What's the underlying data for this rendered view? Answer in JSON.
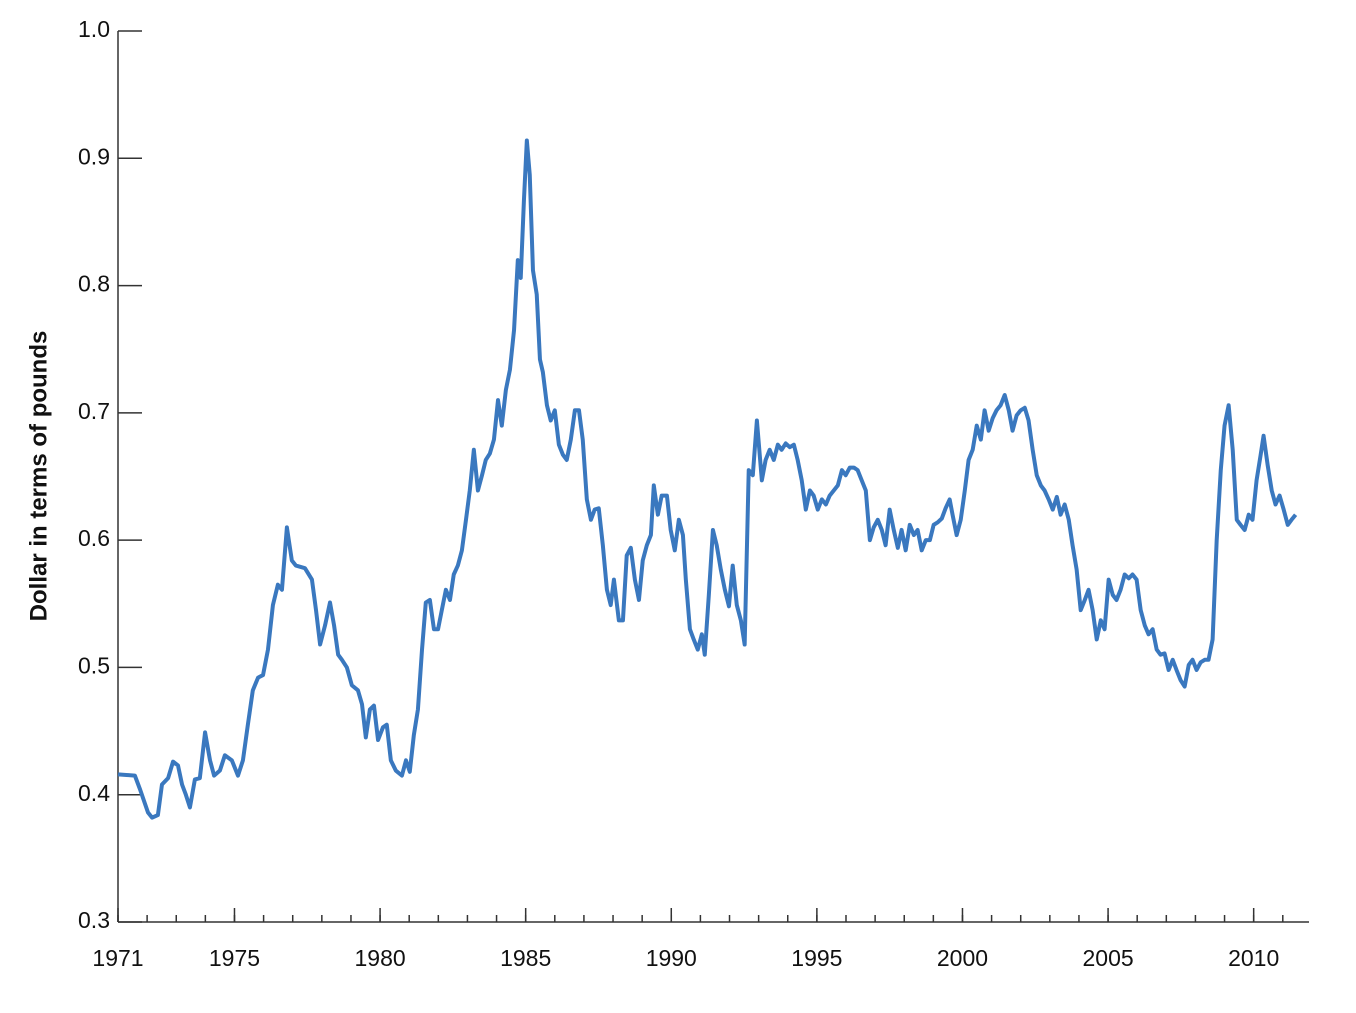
{
  "chart_data": {
    "type": "line",
    "y_label": "Dollar in terms of pounds",
    "color": "#3a78bf",
    "xlim": [
      1971,
      2011.9
    ],
    "ylim": [
      0.3,
      1.0
    ],
    "xticks": [
      1971,
      1975,
      1980,
      1985,
      1990,
      1995,
      2000,
      2005,
      2010
    ],
    "xminorticks": [
      1971,
      1972,
      1973,
      1974,
      1975,
      1976,
      1977,
      1978,
      1979,
      1980,
      1981,
      1982,
      1983,
      1984,
      1985,
      1986,
      1987,
      1988,
      1989,
      1990,
      1991,
      1992,
      1993,
      1994,
      1995,
      1996,
      1997,
      1998,
      1999,
      2000,
      2001,
      2002,
      2003,
      2004,
      2005,
      2006,
      2007,
      2008,
      2009,
      2010,
      2011
    ],
    "yticks": [
      0.3,
      0.4,
      0.5,
      0.6,
      0.7,
      0.8,
      0.9,
      {
        "value": 1,
        "label": "1.0"
      }
    ],
    "x": [
      1971.0,
      1971.58,
      1971.76,
      1972.03,
      1972.17,
      1972.37,
      1972.51,
      1972.72,
      1972.89,
      1973.06,
      1973.2,
      1973.33,
      1973.47,
      1973.64,
      1973.81,
      1973.99,
      1974.16,
      1974.3,
      1974.5,
      1974.67,
      1974.91,
      1975.12,
      1975.29,
      1975.46,
      1975.63,
      1975.81,
      1975.98,
      1976.15,
      1976.32,
      1976.49,
      1976.63,
      1976.8,
      1976.97,
      1977.11,
      1977.42,
      1977.66,
      1977.8,
      1977.94,
      1978.11,
      1978.28,
      1978.42,
      1978.56,
      1978.69,
      1978.86,
      1979.03,
      1979.24,
      1979.38,
      1979.51,
      1979.65,
      1979.79,
      1979.93,
      1980.1,
      1980.23,
      1980.37,
      1980.54,
      1980.75,
      1980.89,
      1981.02,
      1981.16,
      1981.3,
      1981.44,
      1981.57,
      1981.71,
      1981.85,
      1981.99,
      1982.12,
      1982.26,
      1982.4,
      1982.53,
      1982.67,
      1982.81,
      1982.95,
      1983.08,
      1983.22,
      1983.36,
      1983.5,
      1983.63,
      1983.77,
      1983.91,
      1984.05,
      1984.18,
      1984.32,
      1984.46,
      1984.6,
      1984.73,
      1984.83,
      1984.94,
      1985.04,
      1985.14,
      1985.25,
      1985.38,
      1985.49,
      1985.59,
      1985.73,
      1985.86,
      1986.0,
      1986.14,
      1986.28,
      1986.41,
      1986.55,
      1986.69,
      1986.83,
      1986.96,
      1987.1,
      1987.24,
      1987.37,
      1987.51,
      1987.65,
      1987.79,
      1987.92,
      1988.03,
      1988.2,
      1988.34,
      1988.47,
      1988.61,
      1988.75,
      1988.89,
      1989.02,
      1989.16,
      1989.3,
      1989.4,
      1989.54,
      1989.67,
      1989.85,
      1989.98,
      1990.12,
      1990.26,
      1990.4,
      1990.5,
      1990.64,
      1990.77,
      1990.91,
      1991.05,
      1991.15,
      1991.29,
      1991.43,
      1991.56,
      1991.7,
      1991.84,
      1991.98,
      1992.11,
      1992.25,
      1992.39,
      1992.52,
      1992.66,
      1992.8,
      1992.94,
      1993.11,
      1993.24,
      1993.38,
      1993.52,
      1993.66,
      1993.79,
      1993.93,
      1994.07,
      1994.21,
      1994.34,
      1994.48,
      1994.62,
      1994.76,
      1994.89,
      1995.03,
      1995.17,
      1995.31,
      1995.44,
      1995.58,
      1995.72,
      1995.86,
      1995.99,
      1996.13,
      1996.27,
      1996.4,
      1996.54,
      1996.68,
      1996.82,
      1996.95,
      1997.09,
      1997.23,
      1997.36,
      1997.5,
      1997.64,
      1997.78,
      1997.91,
      1998.05,
      1998.19,
      1998.33,
      1998.46,
      1998.6,
      1998.74,
      1998.88,
      1999.01,
      1999.15,
      1999.29,
      1999.42,
      1999.56,
      1999.66,
      1999.8,
      1999.94,
      2000.08,
      2000.21,
      2000.35,
      2000.49,
      2000.63,
      2000.76,
      2000.9,
      2001.04,
      2001.17,
      2001.31,
      2001.45,
      2001.59,
      2001.72,
      2001.86,
      2002.0,
      2002.14,
      2002.27,
      2002.41,
      2002.55,
      2002.69,
      2002.82,
      2002.96,
      2003.1,
      2003.24,
      2003.37,
      2003.51,
      2003.65,
      2003.78,
      2003.92,
      2004.06,
      2004.2,
      2004.33,
      2004.47,
      2004.61,
      2004.75,
      2004.88,
      2005.02,
      2005.16,
      2005.29,
      2005.43,
      2005.57,
      2005.71,
      2005.84,
      2005.98,
      2006.12,
      2006.26,
      2006.39,
      2006.53,
      2006.67,
      2006.8,
      2006.94,
      2007.08,
      2007.22,
      2007.35,
      2007.49,
      2007.63,
      2007.77,
      2007.9,
      2008.04,
      2008.18,
      2008.32,
      2008.45,
      2008.59,
      2008.73,
      2008.87,
      2009.0,
      2009.14,
      2009.28,
      2009.42,
      2009.55,
      2009.69,
      2009.83,
      2009.96,
      2010.1,
      2010.24,
      2010.34,
      2010.48,
      2010.62,
      2010.75,
      2010.89,
      2011.03,
      2011.17,
      2011.3,
      2011.44
    ],
    "values": [
      0.416,
      0.415,
      0.404,
      0.386,
      0.382,
      0.384,
      0.408,
      0.413,
      0.426,
      0.423,
      0.408,
      0.4,
      0.39,
      0.412,
      0.413,
      0.449,
      0.427,
      0.415,
      0.419,
      0.431,
      0.427,
      0.415,
      0.427,
      0.455,
      0.482,
      0.492,
      0.494,
      0.514,
      0.549,
      0.565,
      0.561,
      0.61,
      0.584,
      0.58,
      0.578,
      0.569,
      0.545,
      0.518,
      0.533,
      0.551,
      0.533,
      0.51,
      0.506,
      0.5,
      0.486,
      0.482,
      0.471,
      0.445,
      0.467,
      0.47,
      0.443,
      0.453,
      0.455,
      0.427,
      0.419,
      0.415,
      0.427,
      0.418,
      0.447,
      0.467,
      0.514,
      0.551,
      0.553,
      0.53,
      0.53,
      0.545,
      0.561,
      0.553,
      0.573,
      0.58,
      0.592,
      0.616,
      0.639,
      0.671,
      0.639,
      0.651,
      0.663,
      0.668,
      0.679,
      0.71,
      0.69,
      0.718,
      0.734,
      0.765,
      0.82,
      0.806,
      0.867,
      0.914,
      0.887,
      0.812,
      0.793,
      0.742,
      0.732,
      0.706,
      0.694,
      0.702,
      0.675,
      0.667,
      0.663,
      0.679,
      0.702,
      0.702,
      0.679,
      0.632,
      0.616,
      0.624,
      0.625,
      0.596,
      0.561,
      0.549,
      0.569,
      0.537,
      0.537,
      0.588,
      0.594,
      0.569,
      0.553,
      0.584,
      0.596,
      0.604,
      0.643,
      0.62,
      0.635,
      0.635,
      0.608,
      0.592,
      0.616,
      0.604,
      0.569,
      0.53,
      0.522,
      0.514,
      0.526,
      0.51,
      0.557,
      0.608,
      0.596,
      0.577,
      0.561,
      0.548,
      0.58,
      0.549,
      0.537,
      0.518,
      0.655,
      0.651,
      0.694,
      0.647,
      0.663,
      0.671,
      0.663,
      0.675,
      0.671,
      0.676,
      0.673,
      0.675,
      0.663,
      0.647,
      0.624,
      0.639,
      0.635,
      0.624,
      0.632,
      0.628,
      0.635,
      0.639,
      0.643,
      0.655,
      0.651,
      0.657,
      0.657,
      0.655,
      0.647,
      0.639,
      0.6,
      0.61,
      0.616,
      0.608,
      0.596,
      0.624,
      0.608,
      0.594,
      0.608,
      0.592,
      0.612,
      0.604,
      0.608,
      0.592,
      0.6,
      0.6,
      0.612,
      0.614,
      0.617,
      0.625,
      0.632,
      0.62,
      0.604,
      0.616,
      0.639,
      0.663,
      0.671,
      0.69,
      0.679,
      0.702,
      0.686,
      0.696,
      0.702,
      0.706,
      0.714,
      0.702,
      0.686,
      0.698,
      0.702,
      0.704,
      0.694,
      0.671,
      0.651,
      0.643,
      0.639,
      0.632,
      0.624,
      0.634,
      0.62,
      0.628,
      0.616,
      0.596,
      0.577,
      0.545,
      0.553,
      0.561,
      0.545,
      0.522,
      0.537,
      0.53,
      0.569,
      0.557,
      0.553,
      0.561,
      0.573,
      0.57,
      0.573,
      0.569,
      0.545,
      0.533,
      0.526,
      0.53,
      0.514,
      0.51,
      0.511,
      0.498,
      0.506,
      0.498,
      0.49,
      0.485,
      0.502,
      0.506,
      0.498,
      0.504,
      0.506,
      0.506,
      0.522,
      0.6,
      0.655,
      0.69,
      0.706,
      0.671,
      0.616,
      0.612,
      0.608,
      0.62,
      0.616,
      0.647,
      0.667,
      0.682,
      0.659,
      0.639,
      0.628,
      0.635,
      0.624,
      0.612,
      0.616,
      0.62
    ]
  }
}
